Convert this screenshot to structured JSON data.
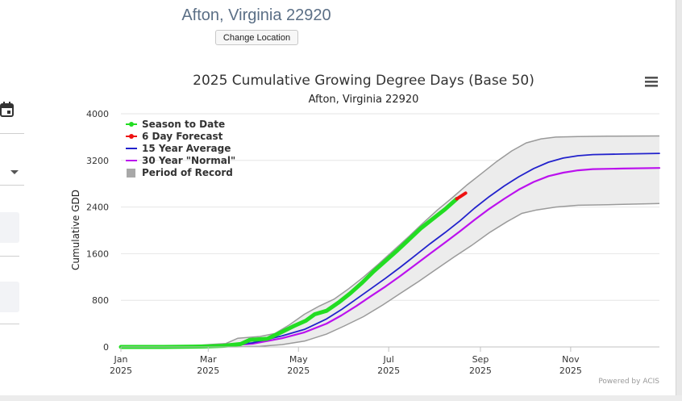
{
  "page": {
    "location_title": "Afton, Virginia 22920",
    "change_location_label": "Change Location"
  },
  "icons": {
    "calendar": "calendar-icon",
    "dropdown": "chevron-down-icon",
    "menu": "hamburger-menu-icon"
  },
  "chart_data": {
    "type": "line",
    "title": "2025 Cumulative Growing Degree Days (Base 50)",
    "subtitle": "Afton, Virginia 22920",
    "ylabel": "Cumulative GDD",
    "xlabel": "",
    "ylim": [
      0,
      4000
    ],
    "yticks": [
      0,
      800,
      1600,
      2400,
      3200,
      4000
    ],
    "xlim": [
      1,
      365
    ],
    "xticks": [
      {
        "day": 1,
        "label": "Jan",
        "year": "2025"
      },
      {
        "day": 60,
        "label": "Mar",
        "year": "2025"
      },
      {
        "day": 121,
        "label": "May",
        "year": "2025"
      },
      {
        "day": 182,
        "label": "Jul",
        "year": "2025"
      },
      {
        "day": 244,
        "label": "Sep",
        "year": "2025"
      },
      {
        "day": 305,
        "label": "Nov",
        "year": "2025"
      }
    ],
    "credit": "Powered by ACIS",
    "legend_position": "top-left",
    "colors": {
      "season": "#22dd22",
      "forecast": "#ee1111",
      "avg15": "#2222cc",
      "normal30": "#bb11ee",
      "record_fill": "#ececec",
      "record_edge": "#9a9a9a"
    },
    "series": [
      {
        "key": "season",
        "name": "Season to Date",
        "points": [
          [
            1,
            0
          ],
          [
            30,
            0
          ],
          [
            50,
            5
          ],
          [
            60,
            10
          ],
          [
            70,
            20
          ],
          [
            82,
            50
          ],
          [
            88,
            120
          ],
          [
            100,
            140
          ],
          [
            110,
            260
          ],
          [
            118,
            360
          ],
          [
            126,
            450
          ],
          [
            132,
            560
          ],
          [
            140,
            620
          ],
          [
            148,
            760
          ],
          [
            156,
            920
          ],
          [
            164,
            1100
          ],
          [
            172,
            1300
          ],
          [
            180,
            1480
          ],
          [
            188,
            1660
          ],
          [
            196,
            1850
          ],
          [
            204,
            2040
          ],
          [
            212,
            2200
          ],
          [
            220,
            2360
          ],
          [
            228,
            2540
          ]
        ]
      },
      {
        "key": "forecast",
        "name": "6 Day Forecast",
        "points": [
          [
            228,
            2540
          ],
          [
            231,
            2590
          ],
          [
            234,
            2640
          ]
        ]
      },
      {
        "key": "avg15",
        "name": "15 Year Average",
        "points": [
          [
            1,
            0
          ],
          [
            40,
            5
          ],
          [
            70,
            20
          ],
          [
            90,
            70
          ],
          [
            110,
            190
          ],
          [
            125,
            300
          ],
          [
            140,
            480
          ],
          [
            150,
            640
          ],
          [
            160,
            820
          ],
          [
            170,
            1000
          ],
          [
            180,
            1180
          ],
          [
            190,
            1370
          ],
          [
            200,
            1570
          ],
          [
            210,
            1770
          ],
          [
            220,
            1960
          ],
          [
            230,
            2160
          ],
          [
            240,
            2380
          ],
          [
            250,
            2580
          ],
          [
            260,
            2760
          ],
          [
            270,
            2920
          ],
          [
            280,
            3060
          ],
          [
            290,
            3170
          ],
          [
            300,
            3240
          ],
          [
            310,
            3280
          ],
          [
            320,
            3300
          ],
          [
            340,
            3310
          ],
          [
            365,
            3320
          ]
        ]
      },
      {
        "key": "normal30",
        "name": "30 Year \"Normal\"",
        "points": [
          [
            1,
            0
          ],
          [
            40,
            4
          ],
          [
            70,
            15
          ],
          [
            90,
            55
          ],
          [
            110,
            150
          ],
          [
            125,
            250
          ],
          [
            140,
            400
          ],
          [
            150,
            540
          ],
          [
            160,
            700
          ],
          [
            170,
            870
          ],
          [
            180,
            1040
          ],
          [
            190,
            1220
          ],
          [
            200,
            1410
          ],
          [
            210,
            1600
          ],
          [
            220,
            1790
          ],
          [
            230,
            1980
          ],
          [
            240,
            2180
          ],
          [
            250,
            2370
          ],
          [
            260,
            2540
          ],
          [
            270,
            2700
          ],
          [
            280,
            2830
          ],
          [
            290,
            2930
          ],
          [
            300,
            2990
          ],
          [
            310,
            3030
          ],
          [
            320,
            3050
          ],
          [
            340,
            3060
          ],
          [
            365,
            3070
          ]
        ]
      }
    ],
    "record": {
      "name": "Period of Record",
      "upper": [
        [
          1,
          0
        ],
        [
          45,
          10
        ],
        [
          60,
          40
        ],
        [
          72,
          60
        ],
        [
          80,
          150
        ],
        [
          95,
          180
        ],
        [
          105,
          230
        ],
        [
          115,
          380
        ],
        [
          125,
          560
        ],
        [
          135,
          700
        ],
        [
          145,
          820
        ],
        [
          155,
          1000
        ],
        [
          165,
          1200
        ],
        [
          175,
          1420
        ],
        [
          185,
          1650
        ],
        [
          195,
          1880
        ],
        [
          205,
          2120
        ],
        [
          215,
          2350
        ],
        [
          225,
          2560
        ],
        [
          235,
          2780
        ],
        [
          245,
          2980
        ],
        [
          255,
          3180
        ],
        [
          265,
          3360
        ],
        [
          275,
          3500
        ],
        [
          285,
          3570
        ],
        [
          295,
          3600
        ],
        [
          310,
          3610
        ],
        [
          330,
          3615
        ],
        [
          365,
          3620
        ]
      ],
      "lower": [
        [
          1,
          0
        ],
        [
          60,
          0
        ],
        [
          80,
          2
        ],
        [
          95,
          10
        ],
        [
          110,
          40
        ],
        [
          125,
          100
        ],
        [
          140,
          220
        ],
        [
          152,
          360
        ],
        [
          165,
          520
        ],
        [
          178,
          720
        ],
        [
          190,
          920
        ],
        [
          202,
          1120
        ],
        [
          214,
          1330
        ],
        [
          226,
          1540
        ],
        [
          238,
          1740
        ],
        [
          250,
          1960
        ],
        [
          262,
          2150
        ],
        [
          272,
          2290
        ],
        [
          282,
          2350
        ],
        [
          295,
          2400
        ],
        [
          310,
          2430
        ],
        [
          330,
          2440
        ],
        [
          365,
          2460
        ]
      ]
    }
  }
}
